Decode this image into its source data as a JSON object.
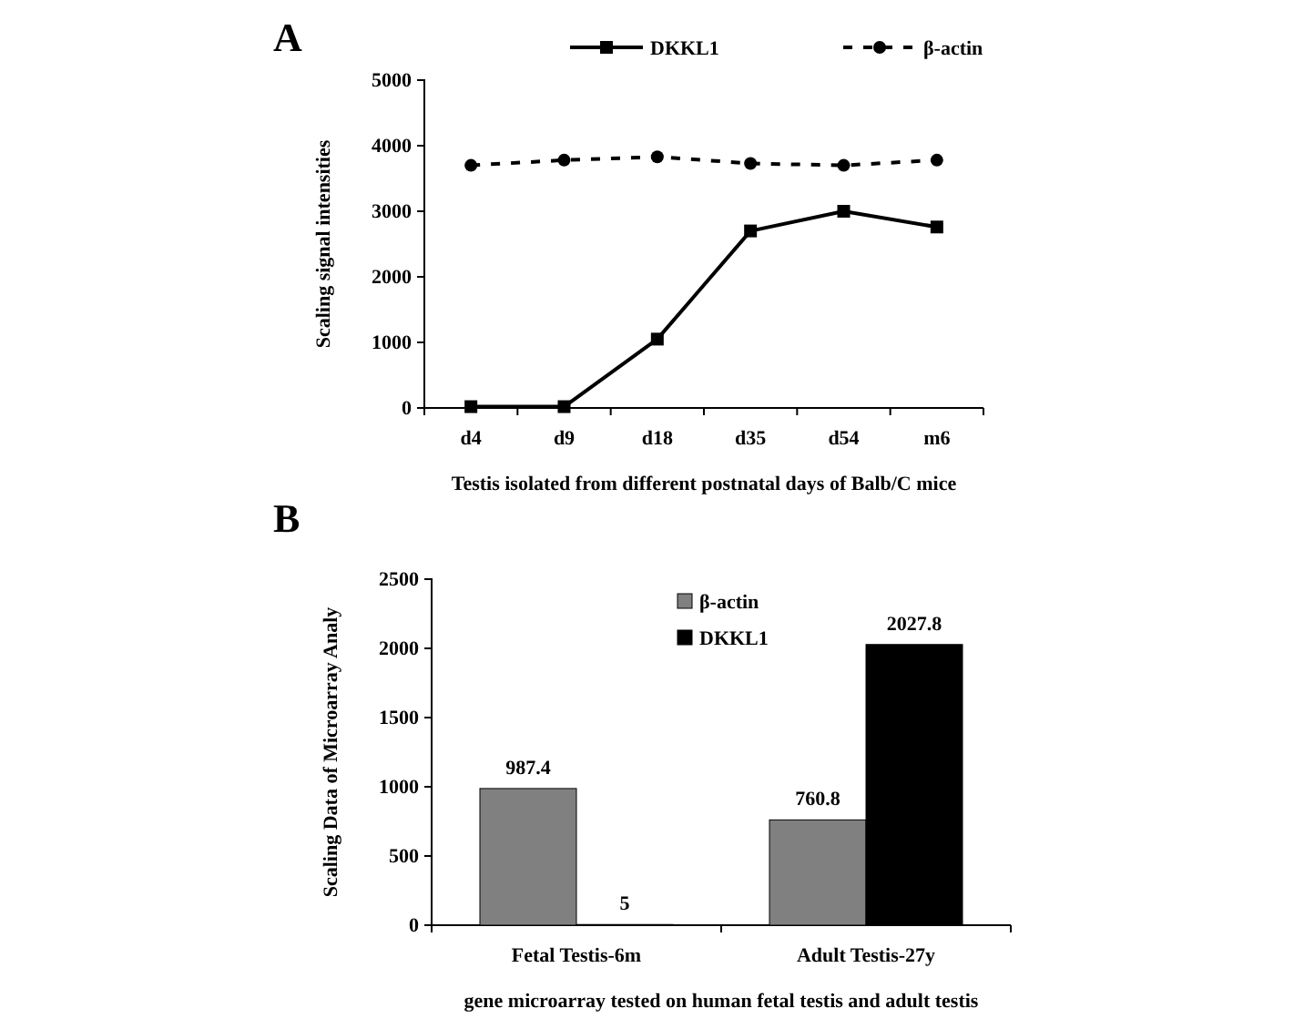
{
  "chart_data": [
    {
      "type": "line",
      "title": "A",
      "ylabel": "Scaling signal intensities",
      "xlabel": "Testis isolated from different postnatal days of Balb/C mice",
      "categories": [
        "d4",
        "d9",
        "d18",
        "d35",
        "d54",
        "m6"
      ],
      "ylim": [
        0,
        5000
      ],
      "yticks": [
        0,
        1000,
        2000,
        3000,
        4000,
        5000
      ],
      "legend": "top",
      "series": [
        {
          "name": "DKKL1",
          "color": "#000000",
          "marker": "square",
          "line_style": "solid",
          "values": [
            20,
            20,
            1050,
            2700,
            3000,
            2760
          ]
        },
        {
          "name": "β-actin",
          "color": "#000000",
          "marker": "circle",
          "line_style": "dashed",
          "values": [
            3700,
            3780,
            3830,
            3730,
            3700,
            3780
          ]
        }
      ]
    },
    {
      "type": "bar",
      "title": "B",
      "ylabel": "Scaling Data of Microarray Analy",
      "xlabel": "gene microarray tested on human fetal testis and adult testis",
      "categories": [
        "Fetal Testis-6m",
        "Adult Testis-27y"
      ],
      "ylim": [
        0,
        2500
      ],
      "yticks": [
        0,
        500,
        1000,
        1500,
        2000,
        2500
      ],
      "legend": "top right",
      "data_labels": true,
      "series": [
        {
          "name": "β-actin",
          "color": "#808080",
          "values": [
            987.4,
            760.8
          ]
        },
        {
          "name": "DKKL1",
          "color": "#000000",
          "values": [
            5,
            2027.8
          ]
        }
      ]
    }
  ]
}
